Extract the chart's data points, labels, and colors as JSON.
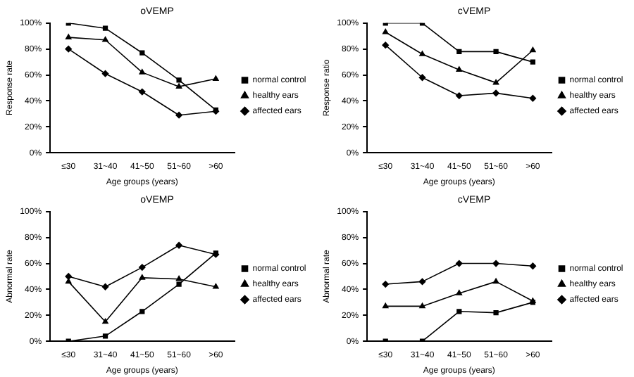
{
  "chart_data": [
    {
      "type": "line",
      "title": "oVEMP",
      "xlabel": "Age groups (years)",
      "ylabel": "Response rate",
      "categories": [
        "≤30",
        "31~40",
        "41~50",
        "51~60",
        ">60"
      ],
      "ylim": [
        0,
        100
      ],
      "yticks": [
        {
          "value": 0,
          "label": "0%"
        },
        {
          "value": 20,
          "label": "20%"
        },
        {
          "value": 40,
          "label": "40%"
        },
        {
          "value": 60,
          "label": "60%"
        },
        {
          "value": 80,
          "label": "80%"
        },
        {
          "value": 100,
          "label": "100%"
        }
      ],
      "legend": "right",
      "grid": false,
      "series": [
        {
          "name": "normal control",
          "color": "#000000",
          "marker": "square",
          "values": [
            100,
            96,
            77,
            56,
            33
          ]
        },
        {
          "name": "healthy ears",
          "color": "#000000",
          "marker": "triangle",
          "values": [
            89,
            87,
            62,
            51,
            57
          ]
        },
        {
          "name": "affected ears",
          "color": "#000000",
          "marker": "diamond",
          "values": [
            80,
            61,
            47,
            29,
            32
          ]
        }
      ]
    },
    {
      "type": "line",
      "title": "cVEMP",
      "xlabel": "Age groups (years)",
      "ylabel": "Response ratio",
      "categories": [
        "≤30",
        "31~40",
        "41~50",
        "51~60",
        ">60"
      ],
      "ylim": [
        0,
        100
      ],
      "yticks": [
        {
          "value": 0,
          "label": "0%"
        },
        {
          "value": 20,
          "label": "20%"
        },
        {
          "value": 40,
          "label": "40%"
        },
        {
          "value": 60,
          "label": "60%"
        },
        {
          "value": 80,
          "label": "80%"
        },
        {
          "value": 100,
          "label": "100%"
        }
      ],
      "legend": "right",
      "grid": false,
      "series": [
        {
          "name": "normal control",
          "color": "#000000",
          "marker": "square",
          "values": [
            100,
            100,
            78,
            78,
            70
          ]
        },
        {
          "name": "healthy ears",
          "color": "#000000",
          "marker": "triangle",
          "values": [
            93,
            76,
            64,
            54,
            79
          ]
        },
        {
          "name": "affected ears",
          "color": "#000000",
          "marker": "diamond",
          "values": [
            83,
            58,
            44,
            46,
            42
          ]
        }
      ]
    },
    {
      "type": "line",
      "title": "oVEMP",
      "xlabel": "Age groups (years)",
      "ylabel": "Abnormal rate",
      "categories": [
        "≤30",
        "31~40",
        "41~50",
        "51~60",
        ">60"
      ],
      "ylim": [
        0,
        100
      ],
      "yticks": [
        {
          "value": 0,
          "label": "0%"
        },
        {
          "value": 20,
          "label": "20%"
        },
        {
          "value": 40,
          "label": "40%"
        },
        {
          "value": 60,
          "label": "60%"
        },
        {
          "value": 80,
          "label": "80%"
        },
        {
          "value": 100,
          "label": "100%"
        }
      ],
      "legend": "right",
      "grid": false,
      "series": [
        {
          "name": "normal control",
          "color": "#000000",
          "marker": "square",
          "values": [
            0,
            4,
            23,
            44,
            68
          ]
        },
        {
          "name": "healthy ears",
          "color": "#000000",
          "marker": "triangle",
          "values": [
            46,
            15,
            49,
            48,
            42
          ]
        },
        {
          "name": "affected ears",
          "color": "#000000",
          "marker": "diamond",
          "values": [
            50,
            42,
            57,
            74,
            67
          ]
        }
      ]
    },
    {
      "type": "line",
      "title": "cVEMP",
      "xlabel": "Age groups (years)",
      "ylabel": "Abnormal rate",
      "categories": [
        "≤30",
        "31~40",
        "41~50",
        "51~60",
        ">60"
      ],
      "ylim": [
        0,
        100
      ],
      "yticks": [
        {
          "value": 0,
          "label": "0%"
        },
        {
          "value": 20,
          "label": "20%"
        },
        {
          "value": 40,
          "label": "40%"
        },
        {
          "value": 60,
          "label": "60%"
        },
        {
          "value": 80,
          "label": "80%"
        },
        {
          "value": 100,
          "label": "100%"
        }
      ],
      "legend": "right",
      "grid": false,
      "series": [
        {
          "name": "normal control",
          "color": "#000000",
          "marker": "square",
          "values": [
            0,
            0,
            23,
            22,
            30
          ]
        },
        {
          "name": "healthy ears",
          "color": "#000000",
          "marker": "triangle",
          "values": [
            27,
            27,
            37,
            46,
            31
          ]
        },
        {
          "name": "affected ears",
          "color": "#000000",
          "marker": "diamond",
          "values": [
            44,
            46,
            60,
            60,
            58
          ]
        }
      ]
    }
  ]
}
